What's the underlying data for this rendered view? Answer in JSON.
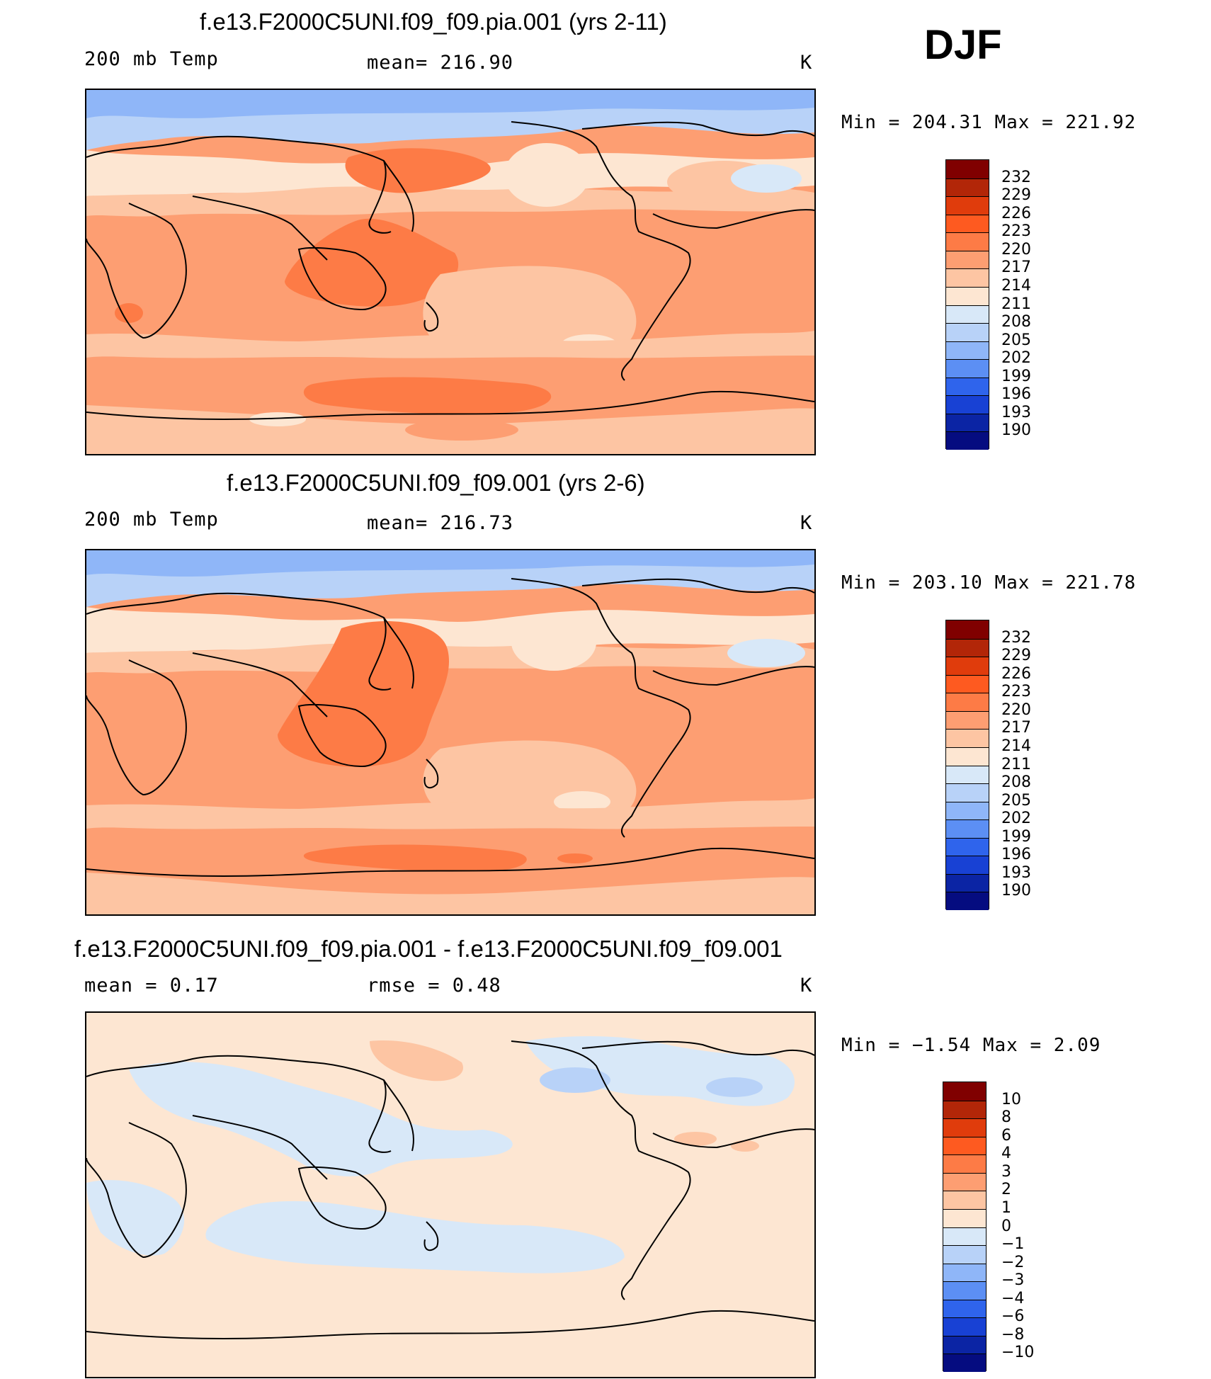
{
  "season": "DJF",
  "panels": [
    {
      "title": "f.e13.F2000C5UNI.f09_f09.pia.001 (yrs 2-11)",
      "left_label": "200 mb Temp",
      "center_label": "mean=  216.90",
      "units": "K",
      "minmax": "Min  =  204.31  Max  =  221.92"
    },
    {
      "title": "f.e13.F2000C5UNI.f09_f09.001 (yrs 2-6)",
      "left_label": "200 mb Temp",
      "center_label": "mean=  216.73",
      "units": "K",
      "minmax": "Min  =  203.10  Max  =  221.78"
    },
    {
      "title": "f.e13.F2000C5UNI.f09_f09.pia.001 - f.e13.F2000C5UNI.f09_f09.001",
      "left_label": "mean  =      0.17",
      "center_label": "rmse  =      0.48",
      "units": "K",
      "minmax": "Min  =    −1.54  Max  =      2.09"
    }
  ],
  "colorbars": {
    "absolute": {
      "labels": [
        "232",
        "229",
        "226",
        "223",
        "220",
        "217",
        "214",
        "211",
        "208",
        "205",
        "202",
        "199",
        "196",
        "193",
        "190"
      ],
      "colors": [
        "#800000",
        "#b22608",
        "#e03c0c",
        "#fe5a20",
        "#fd7b46",
        "#fd9e72",
        "#fdc5a3",
        "#fde6d2",
        "#d8e8f8",
        "#b8d2f8",
        "#8fb6f8",
        "#5c8ff4",
        "#2f64ec",
        "#1841d4",
        "#0b24a4",
        "#050c80"
      ]
    },
    "difference": {
      "labels": [
        "10",
        "8",
        "6",
        "4",
        "3",
        "2",
        "1",
        "0",
        "−1",
        "−2",
        "−3",
        "−4",
        "−6",
        "−8",
        "−10"
      ],
      "colors": [
        "#800000",
        "#b22608",
        "#e03c0c",
        "#fe5a20",
        "#fd7b46",
        "#fd9e72",
        "#fdc5a3",
        "#fde6d2",
        "#d8e8f8",
        "#b8d2f8",
        "#8fb6f8",
        "#5c8ff4",
        "#2f64ec",
        "#1841d4",
        "#0b24a4",
        "#050c80"
      ]
    }
  }
}
